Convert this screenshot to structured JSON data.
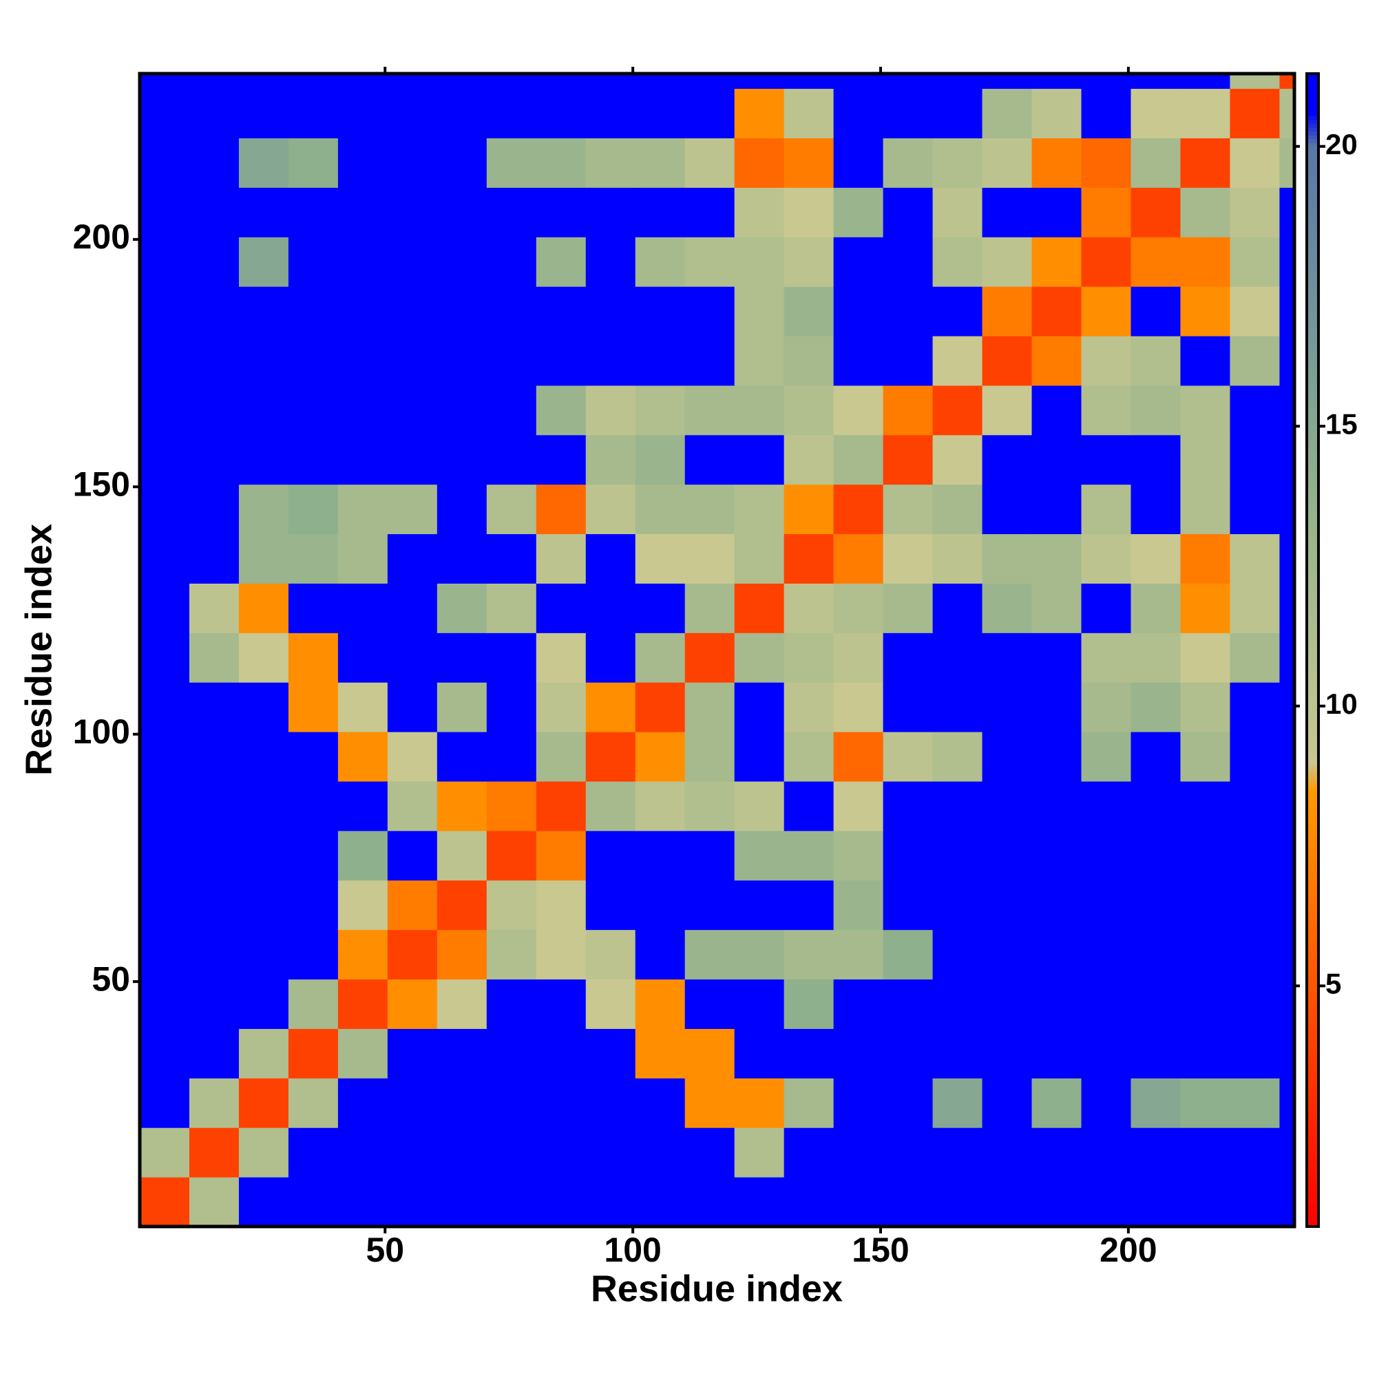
{
  "chart_data": {
    "type": "heatmap",
    "x_label": "Residue index",
    "y_label": "Residue index",
    "xbins": [
      0.5,
      10.5,
      20.5,
      30.5,
      40.5,
      50.5,
      60.5,
      70.5,
      80.5,
      90.5,
      100.5,
      110.5,
      120.5,
      130.5,
      140.5,
      150.5,
      160.5,
      170.5,
      180.5,
      190.5,
      200.5,
      210.5,
      220.5,
      230.5,
      233.5
    ],
    "ybins": [
      0.5,
      10.5,
      20.5,
      30.5,
      40.5,
      50.5,
      60.5,
      70.5,
      80.5,
      90.5,
      100.5,
      110.5,
      120.5,
      130.5,
      140.5,
      150.5,
      160.5,
      170.5,
      180.5,
      190.5,
      200.5,
      210.5,
      220.5,
      230.5,
      233.5
    ],
    "z": [
      [
        4,
        11,
        21,
        21,
        21,
        21,
        21,
        21,
        21,
        21,
        21,
        21,
        21,
        21,
        21,
        21,
        21,
        21,
        21,
        21,
        21,
        21,
        21,
        21
      ],
      [
        11,
        4,
        11,
        21,
        21,
        21,
        21,
        21,
        21,
        21,
        21,
        21,
        11,
        21,
        21,
        21,
        21,
        21,
        21,
        21,
        21,
        21,
        21,
        21
      ],
      [
        21,
        11,
        4,
        11,
        21,
        21,
        21,
        21,
        21,
        21,
        21,
        8,
        8,
        12,
        21,
        21,
        15,
        21,
        14,
        21,
        15,
        14,
        14,
        21
      ],
      [
        21,
        21,
        11,
        4,
        12,
        21,
        21,
        21,
        21,
        21,
        8,
        8,
        21,
        21,
        21,
        21,
        21,
        21,
        21,
        21,
        21,
        21,
        21,
        21
      ],
      [
        21,
        21,
        21,
        12,
        4,
        8,
        9,
        21,
        21,
        9,
        8,
        21,
        21,
        14,
        21,
        21,
        21,
        21,
        21,
        21,
        21,
        21,
        21,
        21
      ],
      [
        21,
        21,
        21,
        21,
        8,
        4,
        7,
        11,
        9,
        10,
        21,
        13,
        13,
        12,
        12,
        14,
        21,
        21,
        21,
        21,
        21,
        21,
        21,
        21
      ],
      [
        21,
        21,
        21,
        21,
        9,
        7,
        4,
        10,
        9,
        21,
        21,
        21,
        21,
        21,
        13,
        21,
        21,
        21,
        21,
        21,
        21,
        21,
        21,
        21
      ],
      [
        21,
        21,
        21,
        21,
        14,
        21,
        10,
        4,
        7,
        21,
        21,
        21,
        13,
        13,
        12,
        21,
        21,
        21,
        21,
        21,
        21,
        21,
        21,
        21
      ],
      [
        21,
        21,
        21,
        21,
        21,
        11,
        8,
        7,
        4,
        12,
        10,
        11,
        10,
        21,
        9,
        21,
        21,
        21,
        21,
        21,
        21,
        21,
        21,
        21
      ],
      [
        21,
        21,
        21,
        21,
        8,
        9,
        21,
        21,
        12,
        4,
        8,
        12,
        21,
        11,
        6,
        10,
        11,
        21,
        21,
        13,
        21,
        12,
        21,
        21
      ],
      [
        21,
        21,
        21,
        8,
        9,
        21,
        12,
        21,
        10,
        8,
        4,
        12,
        21,
        10,
        9,
        21,
        21,
        21,
        21,
        12,
        13,
        11,
        21,
        21
      ],
      [
        21,
        12,
        9,
        8,
        21,
        21,
        21,
        21,
        9,
        21,
        12,
        4,
        12,
        11,
        10,
        21,
        21,
        21,
        21,
        11,
        11,
        9,
        12,
        21
      ],
      [
        21,
        10,
        8,
        21,
        21,
        21,
        13,
        11,
        21,
        21,
        21,
        12,
        4,
        10,
        11,
        12,
        21,
        13,
        12,
        21,
        12,
        8,
        10,
        21
      ],
      [
        21,
        21,
        13,
        13,
        12,
        21,
        21,
        21,
        10,
        21,
        9,
        9,
        11,
        4,
        7,
        9,
        10,
        12,
        12,
        10,
        9,
        7,
        10,
        21
      ],
      [
        21,
        21,
        13,
        14,
        12,
        12,
        21,
        11,
        6,
        10,
        12,
        12,
        11,
        8,
        4,
        11,
        12,
        21,
        21,
        11,
        21,
        11,
        21,
        21
      ],
      [
        21,
        21,
        21,
        21,
        21,
        21,
        21,
        21,
        21,
        12,
        13,
        21,
        21,
        10,
        12,
        4,
        9,
        21,
        21,
        21,
        21,
        11,
        21,
        21
      ],
      [
        21,
        21,
        21,
        21,
        21,
        21,
        21,
        21,
        13,
        10,
        11,
        12,
        12,
        11,
        9,
        7,
        4,
        9,
        21,
        11,
        12,
        11,
        21,
        21
      ],
      [
        21,
        21,
        21,
        21,
        21,
        21,
        21,
        21,
        21,
        21,
        21,
        21,
        11,
        12,
        21,
        21,
        9,
        4,
        7,
        10,
        11,
        21,
        12,
        21
      ],
      [
        21,
        21,
        21,
        21,
        21,
        21,
        21,
        21,
        21,
        21,
        21,
        21,
        11,
        13,
        21,
        21,
        21,
        7,
        4,
        8,
        21,
        8,
        9,
        21
      ],
      [
        21,
        21,
        15,
        21,
        21,
        21,
        21,
        21,
        13,
        21,
        12,
        11,
        11,
        10,
        21,
        21,
        11,
        10,
        8,
        4,
        7,
        7,
        11,
        21
      ],
      [
        21,
        21,
        21,
        21,
        21,
        21,
        21,
        21,
        21,
        21,
        21,
        21,
        10,
        9,
        13,
        21,
        10,
        21,
        21,
        7,
        4,
        12,
        10,
        21
      ],
      [
        21,
        21,
        15,
        14,
        21,
        21,
        21,
        13,
        13,
        12,
        12,
        10,
        6,
        7,
        21,
        12,
        11,
        10,
        7,
        6,
        12,
        4,
        9,
        12
      ],
      [
        21,
        21,
        21,
        21,
        21,
        21,
        21,
        21,
        21,
        21,
        21,
        21,
        8,
        10,
        21,
        21,
        21,
        12,
        10,
        21,
        9,
        9,
        4,
        11
      ],
      [
        21,
        21,
        21,
        21,
        21,
        21,
        21,
        21,
        21,
        21,
        21,
        21,
        21,
        21,
        21,
        21,
        21,
        21,
        21,
        21,
        21,
        21,
        11,
        4
      ]
    ],
    "xlim": [
      0.5,
      233.5
    ],
    "ylim": [
      0.5,
      233.5
    ],
    "xticks": [
      50,
      100,
      150,
      200
    ],
    "yticks": [
      50,
      100,
      150,
      200
    ],
    "zlim": [
      0.7,
      21.3
    ],
    "zticks": [
      5,
      10,
      15,
      20
    ],
    "colorscale": [
      [
        0.7,
        "#ff0000"
      ],
      [
        8.5,
        "#ff9900"
      ],
      [
        9,
        "#c8c890"
      ],
      [
        14,
        "#8fb08c"
      ],
      [
        20,
        "#5878a8"
      ],
      [
        20.6,
        "#0000ff"
      ]
    ]
  }
}
